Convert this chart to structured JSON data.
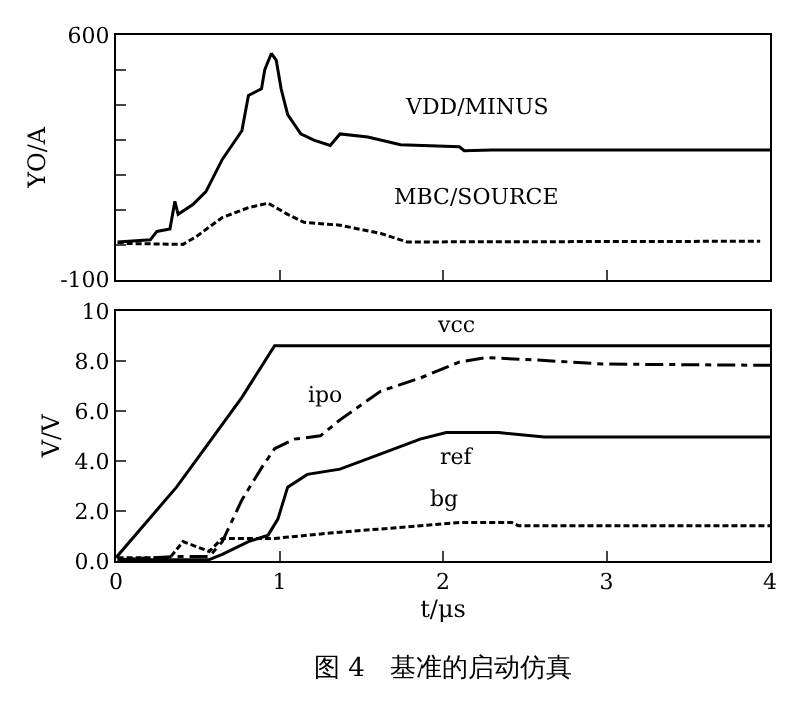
{
  "chart_data": [
    {
      "type": "line",
      "ylabel": "YO/A",
      "xlim": [
        0,
        4
      ],
      "xticks": [
        {
          "value": 0,
          "label": null
        },
        {
          "value": 1,
          "label": null
        },
        {
          "value": 2,
          "label": null
        },
        {
          "value": 3,
          "label": null
        },
        {
          "value": 4,
          "label": null
        }
      ],
      "ylim": [
        -100,
        600
      ],
      "yticks": [
        -100,
        {
          "value": 0,
          "label": null
        },
        {
          "value": 100,
          "label": null
        },
        {
          "value": 200,
          "label": null
        },
        {
          "value": 300,
          "label": null
        },
        {
          "value": 400,
          "label": null
        },
        {
          "value": 500,
          "label": null
        },
        600
      ],
      "tick_labels": "y",
      "series": [
        {
          "name": "VDD/MINUS",
          "color": "#000000",
          "line_style": "solid",
          "x": [
            0.01,
            0.21,
            0.25,
            0.33,
            0.36,
            0.38,
            0.47,
            0.55,
            0.65,
            0.77,
            0.81,
            0.89,
            0.91,
            0.95,
            0.98,
            1.01,
            1.05,
            1.13,
            1.21,
            1.31,
            1.37,
            1.54,
            1.74,
            2.1,
            2.13,
            2.3,
            4.0
          ],
          "values": [
            8,
            14,
            38,
            45,
            124,
            87,
            115,
            152,
            244,
            326,
            427,
            446,
            501,
            547,
            528,
            446,
            372,
            317,
            299,
            284,
            317,
            308,
            286,
            280,
            269,
            271,
            271
          ]
        },
        {
          "name": "MBC/SOURCE",
          "color": "#000000",
          "line_style": "dotted",
          "x": [
            0.01,
            0.41,
            0.49,
            0.65,
            0.81,
            0.93,
            1.05,
            1.15,
            1.37,
            1.62,
            1.78,
            3.94
          ],
          "values": [
            4,
            1,
            23,
            78,
            106,
            119,
            87,
            64,
            56,
            32,
            8,
            10
          ]
        }
      ]
    },
    {
      "type": "line",
      "xlabel": "t/μs",
      "ylabel": "V/V",
      "xlim": [
        0,
        4
      ],
      "xticks": [
        0,
        1,
        2,
        3,
        4
      ],
      "ylim": [
        0,
        10
      ],
      "yticks": [
        {
          "value": 0,
          "label": "0.0"
        },
        {
          "value": 2,
          "label": "2.0"
        },
        {
          "value": 4,
          "label": "4.0"
        },
        {
          "value": 6,
          "label": "6.0"
        },
        {
          "value": 8,
          "label": "8.0"
        },
        10
      ],
      "annotations": [
        "图 4   基准的启动仿真"
      ],
      "series": [
        {
          "name": "vcc",
          "color": "#000000",
          "line_style": "solid",
          "x": [
            0,
            0.37,
            0.57,
            0.77,
            0.97,
            4.0
          ],
          "values": [
            0.13,
            2.95,
            4.74,
            6.54,
            8.6,
            8.6
          ]
        },
        {
          "name": "ipo",
          "color": "#000000",
          "line_style": "dashed",
          "x": [
            0.01,
            0.37,
            0.57,
            0.65,
            0.77,
            0.89,
            0.97,
            1.09,
            1.25,
            1.37,
            1.62,
            1.86,
            2.1,
            2.26,
            2.58,
            2.98,
            4.0
          ],
          "values": [
            0.05,
            0.18,
            0.18,
            0.77,
            2.44,
            3.72,
            4.49,
            4.87,
            5.0,
            5.64,
            6.79,
            7.31,
            7.95,
            8.13,
            8.03,
            7.87,
            7.82
          ]
        },
        {
          "name": "ref",
          "color": "#000000",
          "line_style": "solid",
          "x": [
            0.01,
            0.57,
            0.65,
            0.81,
            0.93,
            0.99,
            1.05,
            1.17,
            1.37,
            1.62,
            1.86,
            2.02,
            2.34,
            2.62,
            4.0
          ],
          "values": [
            0.05,
            0.05,
            0.26,
            0.77,
            1.03,
            1.67,
            2.95,
            3.46,
            3.67,
            4.28,
            4.87,
            5.13,
            5.13,
            4.95,
            4.95
          ]
        },
        {
          "name": "bg",
          "color": "#000000",
          "line_style": "dotted",
          "x": [
            0.01,
            0.33,
            0.41,
            0.57,
            0.65,
            0.97,
            1.37,
            1.78,
            2.1,
            2.42,
            2.46,
            4.0
          ],
          "values": [
            0.13,
            0.13,
            0.77,
            0.38,
            0.9,
            0.9,
            1.15,
            1.36,
            1.54,
            1.54,
            1.41,
            1.41
          ]
        }
      ]
    }
  ]
}
